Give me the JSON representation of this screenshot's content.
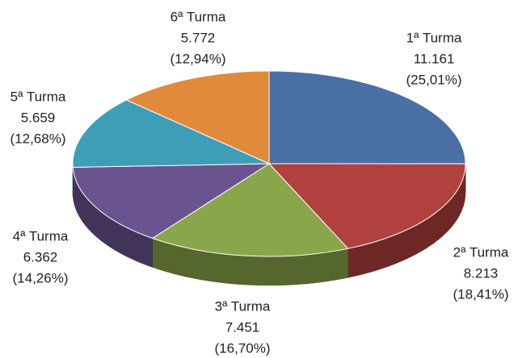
{
  "chart_data": {
    "type": "pie",
    "categories": [
      "1ª Turma",
      "2ª Turma",
      "3ª Turma",
      "4ª Turma",
      "5ª Turma",
      "6ª Turma"
    ],
    "values": [
      11161,
      8213,
      7451,
      6362,
      5659,
      5772
    ],
    "value_labels": [
      "11.161",
      "8.213",
      "7.451",
      "6.362",
      "5.659",
      "5.772"
    ],
    "percent_labels": [
      "(25,01%)",
      "(18,41%)",
      "(16,70%)",
      "(14,26%)",
      "(12,68%)",
      "(12,94%)"
    ],
    "colors": [
      "#4a6fa5",
      "#b0413e",
      "#8aa64a",
      "#6a5490",
      "#3e9eb8",
      "#e08a3c"
    ]
  }
}
